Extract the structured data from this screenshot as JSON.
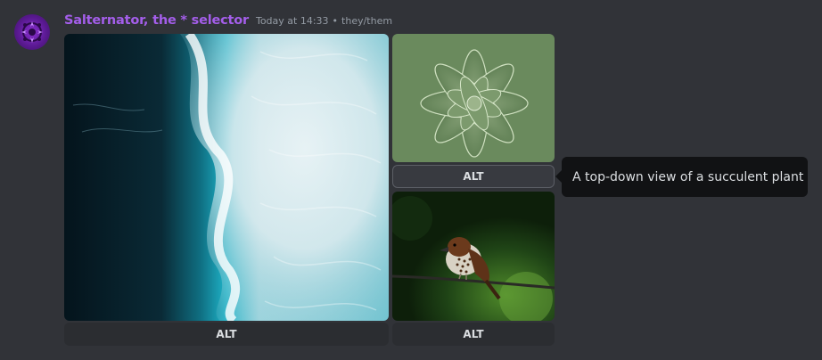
{
  "message": {
    "author": "Salternator, the * selector",
    "timestamp": "Today at 14:33",
    "separator": "•",
    "pronouns": "they/them",
    "author_color": "#a45eea"
  },
  "attachments": [
    {
      "subject": "ocean-waves",
      "alt_label": "ALT"
    },
    {
      "subject": "succulent",
      "alt_label": "ALT",
      "hovered": true
    },
    {
      "subject": "bird-on-branch",
      "alt_label": "ALT"
    }
  ],
  "tooltip": {
    "text": "A top-down view of a succulent plant"
  }
}
